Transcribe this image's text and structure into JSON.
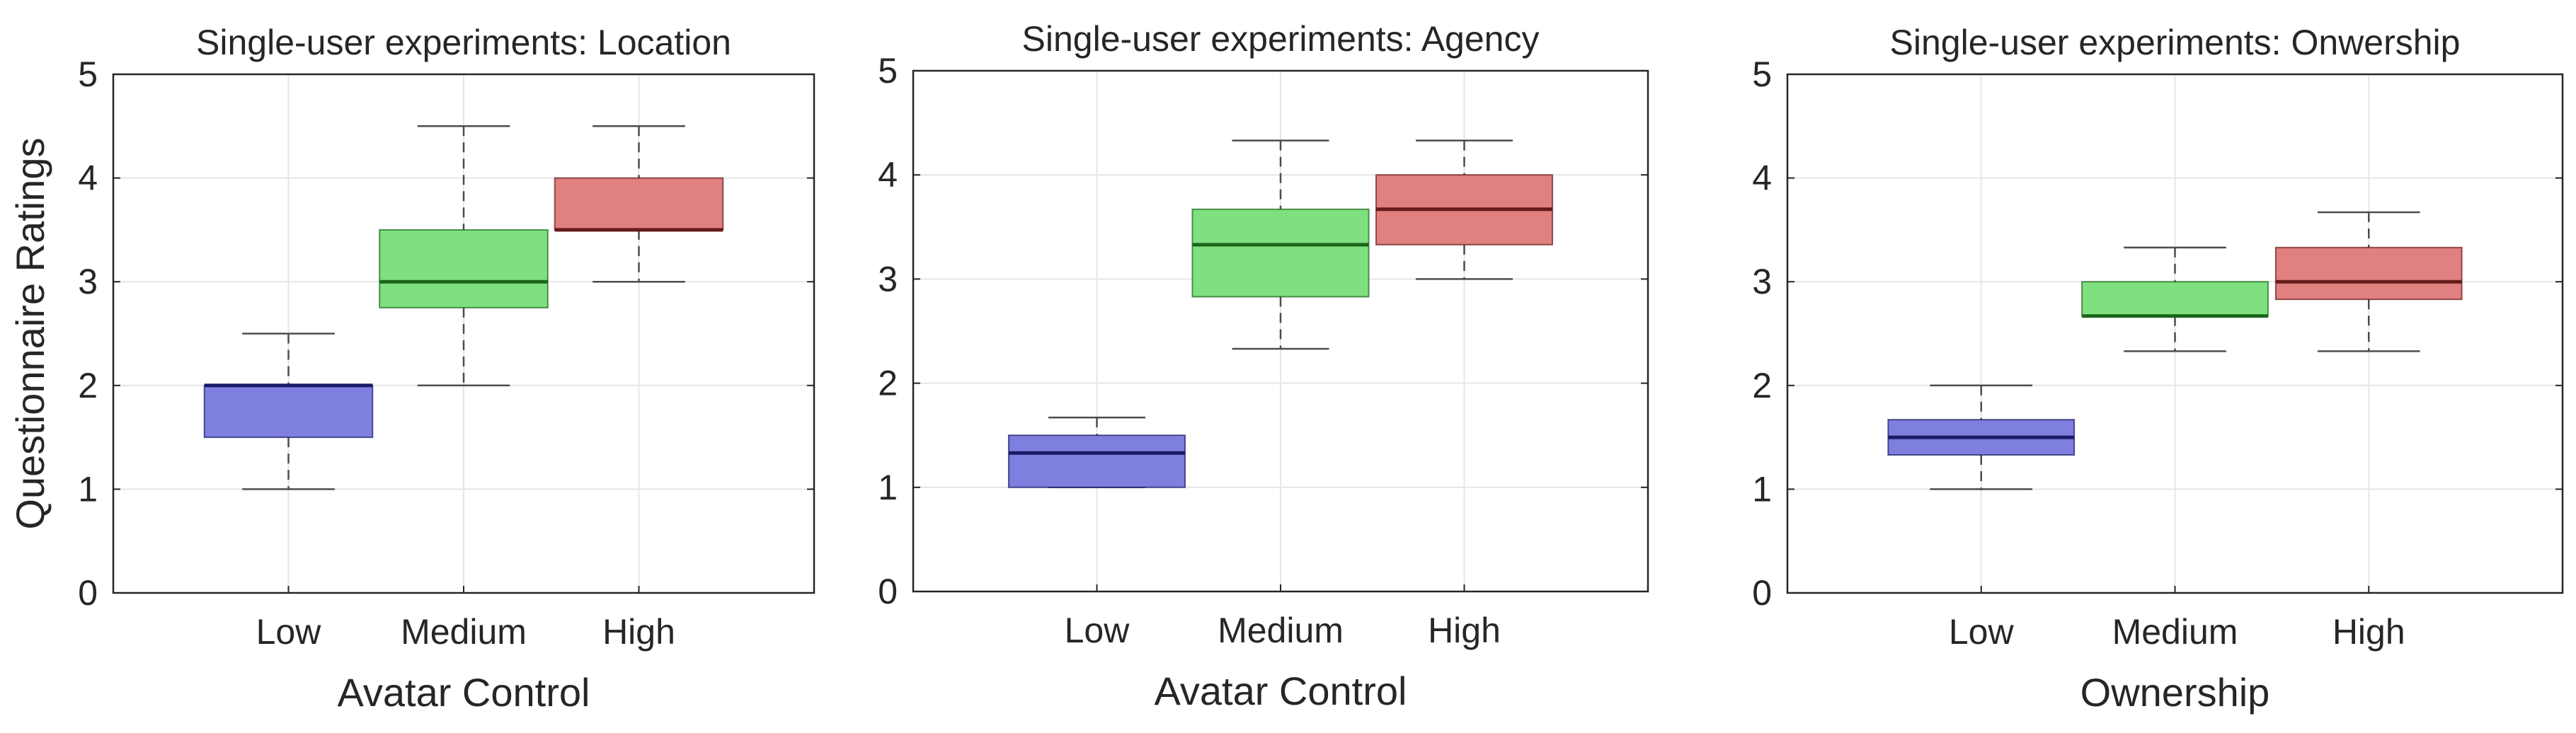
{
  "chart_data": [
    {
      "type": "box",
      "title": "Single-user experiments: Location",
      "xlabel": "Avatar Control",
      "ylabel": "Questionnaire Ratings",
      "categories": [
        "Low",
        "Medium",
        "High"
      ],
      "ylim": [
        0,
        5
      ],
      "yticks": [
        0,
        1,
        2,
        3,
        4,
        5
      ],
      "grid": true,
      "boxes": [
        {
          "name": "Low",
          "min": 1.0,
          "q1": 1.5,
          "median": 2.0,
          "q3": 2.0,
          "max": 2.5,
          "color": "#7f7fe0",
          "median_color": "#1a1a66"
        },
        {
          "name": "Medium",
          "min": 2.0,
          "q1": 2.75,
          "median": 3.0,
          "q3": 3.5,
          "max": 4.5,
          "color": "#7fe07f",
          "median_color": "#1a661a"
        },
        {
          "name": "High",
          "min": 3.0,
          "q1": 3.5,
          "median": 3.5,
          "q3": 4.0,
          "max": 4.5,
          "color": "#e08080",
          "median_color": "#661a1a"
        }
      ]
    },
    {
      "type": "box",
      "title": "Single-user experiments: Agency",
      "xlabel": "Avatar Control",
      "ylabel": "",
      "categories": [
        "Low",
        "Medium",
        "High"
      ],
      "ylim": [
        0,
        5
      ],
      "yticks": [
        0,
        1,
        2,
        3,
        4,
        5
      ],
      "grid": true,
      "boxes": [
        {
          "name": "Low",
          "min": 1.0,
          "q1": 1.0,
          "median": 1.33,
          "q3": 1.5,
          "max": 1.67,
          "color": "#7f7fe0",
          "median_color": "#1a1a66"
        },
        {
          "name": "Medium",
          "min": 2.33,
          "q1": 2.83,
          "median": 3.33,
          "q3": 3.67,
          "max": 4.33,
          "color": "#7fe07f",
          "median_color": "#1a661a"
        },
        {
          "name": "High",
          "min": 3.0,
          "q1": 3.33,
          "median": 3.67,
          "q3": 4.0,
          "max": 4.33,
          "color": "#e08080",
          "median_color": "#661a1a"
        }
      ]
    },
    {
      "type": "box",
      "title": "Single-user experiments: Onwership",
      "xlabel": "Ownership",
      "ylabel": "",
      "categories": [
        "Low",
        "Medium",
        "High"
      ],
      "ylim": [
        0,
        5
      ],
      "yticks": [
        0,
        1,
        2,
        3,
        4,
        5
      ],
      "grid": true,
      "boxes": [
        {
          "name": "Low",
          "min": 1.0,
          "q1": 1.33,
          "median": 1.5,
          "q3": 1.67,
          "max": 2.0,
          "color": "#7f7fe0",
          "median_color": "#1a1a66"
        },
        {
          "name": "Medium",
          "min": 2.33,
          "q1": 2.67,
          "median": 2.67,
          "q3": 3.0,
          "max": 3.33,
          "color": "#7fe07f",
          "median_color": "#1a661a"
        },
        {
          "name": "High",
          "min": 2.33,
          "q1": 2.83,
          "median": 3.0,
          "q3": 3.33,
          "max": 3.67,
          "color": "#e08080",
          "median_color": "#661a1a"
        }
      ]
    }
  ]
}
